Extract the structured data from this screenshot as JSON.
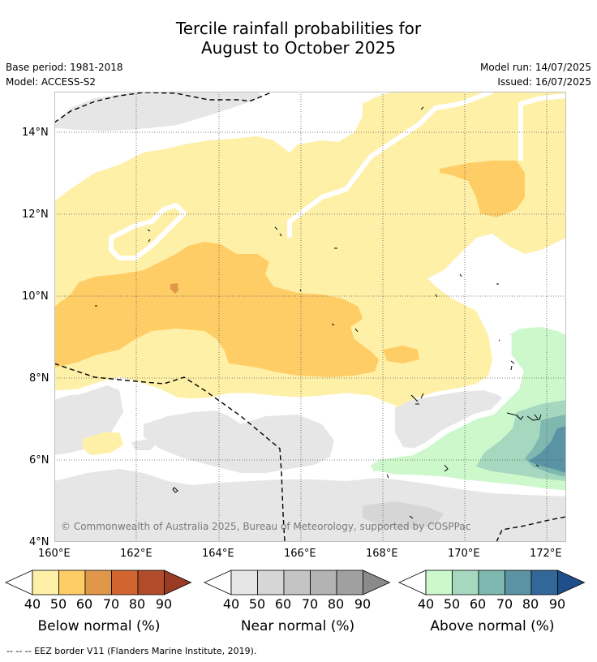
{
  "title_line1": "Tercile rainfall probabilities for",
  "title_line2": "August to October 2025",
  "base_period": "Base period: 1981-2018",
  "model": "Model: ACCESS-S2",
  "model_run": "Model run: 14/07/2025",
  "issued": "Issued: 16/07/2025",
  "lat_ticks": [
    "14°N",
    "12°N",
    "10°N",
    "8°N",
    "6°N",
    "4°N"
  ],
  "lon_ticks": [
    "160°E",
    "162°E",
    "164°E",
    "166°E",
    "168°E",
    "170°E",
    "172°E"
  ],
  "copyright": "© Commonwealth of Australia 2025, Bureau of Meteorology, supported by COSPPac",
  "colorbars": [
    {
      "title": "Below normal (%)",
      "labels": [
        "40",
        "50",
        "60",
        "70",
        "80",
        "90"
      ],
      "colors": [
        "#fff0a8",
        "#ffcd66",
        "#e0974a",
        "#d06530",
        "#b04c2a",
        "#993b24"
      ]
    },
    {
      "title": "Near normal (%)",
      "labels": [
        "40",
        "50",
        "60",
        "70",
        "80",
        "90"
      ],
      "colors": [
        "#e6e6e6",
        "#d6d6d6",
        "#c4c4c4",
        "#b3b3b3",
        "#a0a0a0",
        "#8a8a8a"
      ]
    },
    {
      "title": "Above normal (%)",
      "labels": [
        "40",
        "50",
        "60",
        "70",
        "80",
        "90"
      ],
      "colors": [
        "#ccf8cc",
        "#a5d8bf",
        "#7fb8b0",
        "#5a93a3",
        "#336699",
        "#1e4f8a"
      ]
    }
  ],
  "footnote": "--  --  -- EEZ border V11 (Flanders Marine Institute, 2019).",
  "colors": {
    "below_40": "#fff0a8",
    "below_50": "#ffcd66",
    "below_60": "#e0974a",
    "near_40": "#e6e6e6",
    "near_50": "#d6d6d6",
    "above_40": "#ccf8cc",
    "above_50": "#a5d8bf",
    "above_60": "#7fb8b0",
    "above_70": "#5a93a3"
  }
}
